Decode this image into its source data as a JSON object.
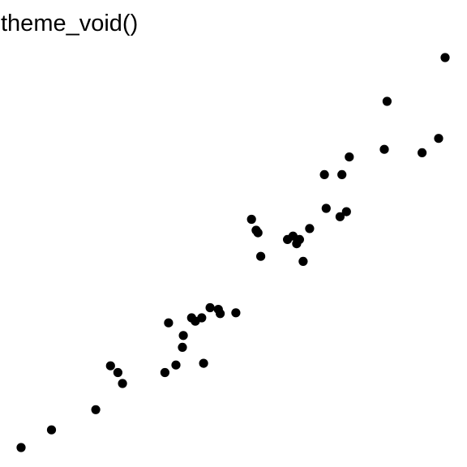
{
  "chart_data": {
    "type": "scatter",
    "title": "theme_void()",
    "xlabel": "",
    "ylabel": "",
    "grid": false,
    "legend": "none",
    "point_color": "#000000",
    "xlim": [
      1.3,
      6.0
    ],
    "ylim": [
      0.8,
      5.8
    ],
    "points": [
      {
        "x": 1.4,
        "y": 0.85
      },
      {
        "x": 1.73,
        "y": 1.06
      },
      {
        "x": 2.21,
        "y": 1.3
      },
      {
        "x": 2.37,
        "y": 1.82
      },
      {
        "x": 2.45,
        "y": 1.74
      },
      {
        "x": 2.5,
        "y": 1.61
      },
      {
        "x": 2.96,
        "y": 1.74
      },
      {
        "x": 3.08,
        "y": 1.83
      },
      {
        "x": 3.0,
        "y": 2.33
      },
      {
        "x": 3.15,
        "y": 2.04
      },
      {
        "x": 3.16,
        "y": 2.18
      },
      {
        "x": 3.25,
        "y": 2.39
      },
      {
        "x": 3.29,
        "y": 2.35
      },
      {
        "x": 3.36,
        "y": 2.39
      },
      {
        "x": 3.38,
        "y": 1.85
      },
      {
        "x": 3.45,
        "y": 2.51
      },
      {
        "x": 3.54,
        "y": 2.49
      },
      {
        "x": 3.56,
        "y": 2.44
      },
      {
        "x": 3.73,
        "y": 2.45
      },
      {
        "x": 3.9,
        "y": 3.56
      },
      {
        "x": 3.95,
        "y": 3.43
      },
      {
        "x": 3.97,
        "y": 3.4
      },
      {
        "x": 4.0,
        "y": 3.12
      },
      {
        "x": 4.29,
        "y": 3.32
      },
      {
        "x": 4.35,
        "y": 3.36
      },
      {
        "x": 4.39,
        "y": 3.27
      },
      {
        "x": 4.42,
        "y": 3.32
      },
      {
        "x": 4.46,
        "y": 3.06
      },
      {
        "x": 4.53,
        "y": 3.45
      },
      {
        "x": 4.69,
        "y": 4.09
      },
      {
        "x": 4.71,
        "y": 3.69
      },
      {
        "x": 4.86,
        "y": 3.59
      },
      {
        "x": 4.88,
        "y": 4.09
      },
      {
        "x": 4.93,
        "y": 3.65
      },
      {
        "x": 4.96,
        "y": 4.3
      },
      {
        "x": 5.34,
        "y": 4.39
      },
      {
        "x": 5.37,
        "y": 4.96
      },
      {
        "x": 5.75,
        "y": 4.35
      },
      {
        "x": 5.93,
        "y": 4.52
      },
      {
        "x": 6.0,
        "y": 5.48
      }
    ]
  }
}
